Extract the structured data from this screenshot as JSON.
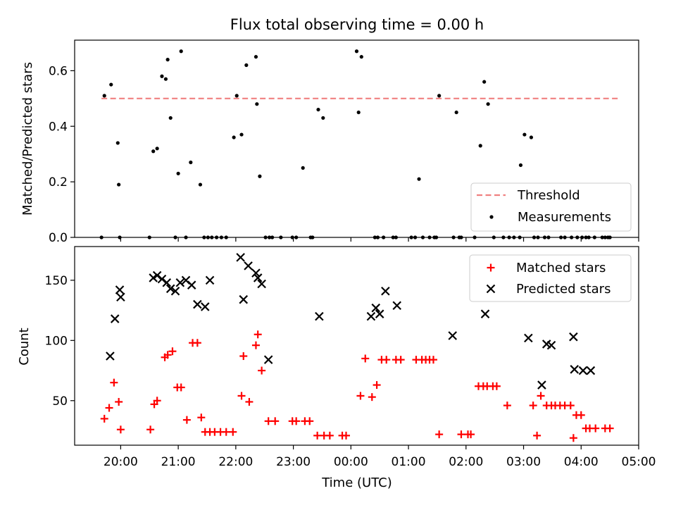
{
  "chart_data": [
    {
      "type": "scatter",
      "title": "Flux total observing time = 0.00 h",
      "xlabel": "",
      "ylabel": "Matched/Predicted stars",
      "xlim": [
        "19:12",
        "05:00"
      ],
      "ylim": [
        0,
        0.71
      ],
      "yticks": [
        "0.0",
        "0.2",
        "0.4",
        "0.6"
      ],
      "grid": false,
      "legend_position": "lower-right",
      "threshold": {
        "name": "Threshold",
        "value": 0.5,
        "x_start": "19:40",
        "x_end": "04:40",
        "color": "#f08080"
      },
      "series": [
        {
          "name": "Measurements",
          "color": "#000000",
          "x": [
            "19:40",
            "19:43",
            "19:50",
            "19:57",
            "19:58",
            "19:59",
            "20:30",
            "20:34",
            "20:38",
            "20:43",
            "20:47",
            "20:49",
            "20:52",
            "20:57",
            "21:00",
            "21:03",
            "21:08",
            "21:13",
            "21:23",
            "21:27",
            "21:31",
            "21:35",
            "21:40",
            "21:45",
            "21:50",
            "21:58",
            "22:01",
            "22:06",
            "22:11",
            "22:21",
            "22:22",
            "22:25",
            "22:31",
            "22:35",
            "22:38",
            "22:47",
            "22:59",
            "23:03",
            "23:10",
            "23:18",
            "23:20",
            "23:26",
            "23:31",
            "00:06",
            "00:08",
            "00:11",
            "00:25",
            "00:28",
            "00:34",
            "00:44",
            "00:47",
            "01:03",
            "01:07",
            "01:11",
            "01:15",
            "01:22",
            "01:27",
            "01:29",
            "01:32",
            "01:47",
            "01:50",
            "01:53",
            "01:55",
            "02:09",
            "02:15",
            "02:19",
            "02:23",
            "02:29",
            "02:39",
            "02:45",
            "02:50",
            "02:56",
            "02:57",
            "03:01",
            "03:08",
            "03:11",
            "03:15",
            "03:22",
            "03:26",
            "03:39",
            "03:43",
            "03:50",
            "03:56",
            "04:01",
            "04:05",
            "04:08",
            "04:14",
            "04:22",
            "04:25",
            "04:28",
            "04:30"
          ],
          "y": [
            0.0,
            0.51,
            0.55,
            0.34,
            0.19,
            0.0,
            0.0,
            0.31,
            0.32,
            0.58,
            0.57,
            0.64,
            0.43,
            0.0,
            0.23,
            0.67,
            0.0,
            0.27,
            0.19,
            0.0,
            0.0,
            0.0,
            0.0,
            0.0,
            0.0,
            0.36,
            0.51,
            0.37,
            0.62,
            0.65,
            0.48,
            0.22,
            0.0,
            0.0,
            0.0,
            0.0,
            0.0,
            0.0,
            0.25,
            0.0,
            0.0,
            0.46,
            0.43,
            0.67,
            0.45,
            0.65,
            0.0,
            0.0,
            0.0,
            0.0,
            0.0,
            0.0,
            0.0,
            0.21,
            0.0,
            0.0,
            0.0,
            0.0,
            0.51,
            0.0,
            0.45,
            0.0,
            0.0,
            0.0,
            0.33,
            0.56,
            0.48,
            0.0,
            0.0,
            0.0,
            0.0,
            0.0,
            0.26,
            0.37,
            0.36,
            0.0,
            0.0,
            0.0,
            0.0,
            0.0,
            0.0,
            0.0,
            0.0,
            0.0,
            0.0,
            0.0,
            0.0,
            0.0,
            0.0,
            0.0,
            0.0
          ]
        }
      ]
    },
    {
      "type": "scatter",
      "title": "",
      "xlabel": "Time (UTC)",
      "ylabel": "Count",
      "xlim": [
        "19:12",
        "05:00"
      ],
      "ylim": [
        13,
        178
      ],
      "xticks": [
        "20:00",
        "21:00",
        "22:00",
        "23:00",
        "00:00",
        "01:00",
        "02:00",
        "03:00",
        "04:00",
        "05:00"
      ],
      "yticks": [
        "50",
        "100",
        "150"
      ],
      "grid": false,
      "legend_position": "top-right",
      "series": [
        {
          "name": "Matched stars",
          "marker": "plus",
          "color": "#ff0000",
          "x": [
            "19:43",
            "19:48",
            "19:53",
            "19:58",
            "20:00",
            "20:31",
            "20:35",
            "20:38",
            "20:46",
            "20:49",
            "20:54",
            "20:59",
            "21:03",
            "21:09",
            "21:15",
            "21:20",
            "21:24",
            "21:28",
            "21:33",
            "21:38",
            "21:44",
            "21:50",
            "21:57",
            "22:06",
            "22:08",
            "22:14",
            "22:21",
            "22:23",
            "22:27",
            "22:34",
            "22:41",
            "22:59",
            "23:03",
            "23:12",
            "23:17",
            "23:25",
            "23:32",
            "23:38",
            "23:51",
            "23:55",
            "00:10",
            "00:15",
            "00:22",
            "00:27",
            "00:32",
            "00:37",
            "00:47",
            "00:52",
            "01:08",
            "01:14",
            "01:18",
            "01:22",
            "01:26",
            "01:32",
            "01:55",
            "02:02",
            "02:05",
            "02:13",
            "02:18",
            "02:22",
            "02:28",
            "02:32",
            "02:43",
            "03:10",
            "03:14",
            "03:18",
            "03:24",
            "03:29",
            "03:33",
            "03:38",
            "03:43",
            "03:49",
            "03:52",
            "03:55",
            "04:00",
            "04:05",
            "04:09",
            "04:15",
            "04:25",
            "04:30"
          ],
          "y": [
            35,
            44,
            65,
            49,
            26,
            26,
            47,
            50,
            86,
            88,
            91,
            61,
            61,
            34,
            98,
            98,
            36,
            24,
            24,
            24,
            24,
            24,
            24,
            54,
            87,
            49,
            96,
            105,
            75,
            33,
            33,
            33,
            33,
            33,
            33,
            21,
            21,
            21,
            21,
            21,
            54,
            85,
            53,
            63,
            84,
            84,
            84,
            84,
            84,
            84,
            84,
            84,
            84,
            22,
            22,
            22,
            22,
            62,
            62,
            62,
            62,
            62,
            46,
            46,
            21,
            54,
            46,
            46,
            46,
            46,
            46,
            46,
            19,
            38,
            38,
            27,
            27,
            27,
            27,
            27
          ]
        },
        {
          "name": "Predicted stars",
          "marker": "x",
          "color": "#000000",
          "x": [
            "19:49",
            "19:54",
            "19:59",
            "20:00",
            "20:34",
            "20:38",
            "20:43",
            "20:48",
            "20:52",
            "20:57",
            "21:02",
            "21:08",
            "21:14",
            "21:20",
            "21:28",
            "21:33",
            "22:05",
            "22:08",
            "22:13",
            "22:21",
            "22:23",
            "22:27",
            "22:34",
            "23:27",
            "00:21",
            "00:26",
            "00:30",
            "00:36",
            "00:48",
            "01:46",
            "02:20",
            "03:05",
            "03:19",
            "03:24",
            "03:29",
            "03:52",
            "03:53",
            "04:02",
            "04:10"
          ],
          "y": [
            87,
            118,
            142,
            136,
            152,
            154,
            151,
            148,
            143,
            141,
            148,
            150,
            146,
            130,
            128,
            150,
            169,
            134,
            162,
            156,
            152,
            147,
            84,
            120,
            120,
            127,
            122,
            141,
            129,
            104,
            122,
            102,
            63,
            97,
            96,
            103,
            76,
            75,
            75
          ]
        }
      ]
    }
  ]
}
